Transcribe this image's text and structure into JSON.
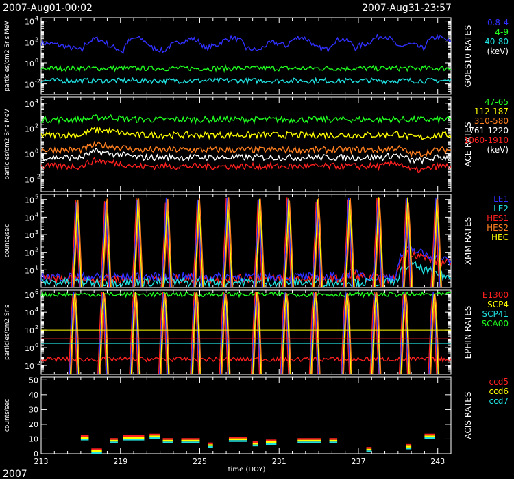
{
  "header": {
    "start": "2007-Aug01-00:02",
    "end": "2007-Aug31-23:57",
    "year": "2007"
  },
  "x_axis": {
    "label": "time (DOY)",
    "range": [
      213,
      244
    ],
    "ticks": [
      213,
      219,
      225,
      231,
      237,
      243
    ]
  },
  "chart_data": [
    {
      "type": "line",
      "title": "GOES10 RATES",
      "ylabel": "particles/cm2 Sr s MeV",
      "yscale": "log",
      "ylim": [
        0.001,
        20000
      ],
      "yticks": [
        {
          "exp": "-2",
          "v": 0.01
        },
        {
          "exp": "0",
          "v": 1
        },
        {
          "exp": "2",
          "v": 100
        },
        {
          "exp": "4",
          "v": 10000
        }
      ],
      "legend": [
        {
          "text": "0.8-4",
          "color": "#3030ff"
        },
        {
          "text": "4-9",
          "color": "#20ff20"
        },
        {
          "text": "40-80",
          "color": "#20e0e0"
        },
        {
          "text": "(keV)",
          "color": "#ffffff"
        }
      ],
      "series": [
        {
          "color": "#3030ff",
          "values": [
            80,
            60,
            30,
            15,
            200,
            40,
            10,
            250,
            30,
            12,
            80,
            200,
            20,
            60,
            250,
            25,
            15,
            90,
            40,
            300,
            30,
            20,
            200,
            25,
            80,
            400,
            30,
            60,
            20,
            300,
            80
          ]
        },
        {
          "color": "#20ff20",
          "values": [
            0.3,
            0.3,
            0.3,
            0.3,
            0.3,
            0.3,
            0.3,
            0.3,
            0.3,
            0.3,
            0.3,
            0.3,
            0.3,
            0.3,
            0.3,
            0.3,
            0.3,
            0.3,
            0.3,
            0.3,
            0.3,
            0.3,
            0.3,
            0.3,
            0.3,
            0.3,
            0.3,
            0.3,
            0.3,
            0.3,
            0.3
          ]
        },
        {
          "color": "#20e0e0",
          "values": [
            0.02,
            0.02,
            0.02,
            0.02,
            0.02,
            0.02,
            0.02,
            0.02,
            0.02,
            0.02,
            0.02,
            0.02,
            0.02,
            0.02,
            0.02,
            0.02,
            0.02,
            0.02,
            0.02,
            0.02,
            0.02,
            0.02,
            0.02,
            0.02,
            0.02,
            0.02,
            0.02,
            0.02,
            0.02,
            0.02,
            0.02
          ]
        }
      ]
    },
    {
      "type": "line",
      "title": "ACE RATES",
      "ylabel": "particles/cm2 Sr s MeV",
      "yscale": "log",
      "ylim": [
        0.001,
        30000
      ],
      "yticks": [
        {
          "exp": "-2",
          "v": 0.01
        },
        {
          "exp": "0",
          "v": 1
        },
        {
          "exp": "2",
          "v": 100
        },
        {
          "exp": "4",
          "v": 10000
        }
      ],
      "legend": [
        {
          "text": "47-65",
          "color": "#20ff20"
        },
        {
          "text": "112-187",
          "color": "#ffff00"
        },
        {
          "text": "310-580",
          "color": "#ff7f20"
        },
        {
          "text": "761-1220",
          "color": "#ffffff"
        },
        {
          "text": "1060-1910",
          "color": "#ff2020"
        },
        {
          "text": "(keV)",
          "color": "#ffffff"
        }
      ],
      "series": [
        {
          "color": "#20ff20",
          "values": [
            500,
            500,
            500,
            500,
            700,
            800,
            600,
            500,
            500,
            500,
            500,
            500,
            500,
            500,
            500,
            500,
            500,
            500,
            500,
            500,
            500,
            500,
            500,
            500,
            500,
            500,
            500,
            500,
            500,
            500,
            500
          ]
        },
        {
          "color": "#ffff00",
          "values": [
            30,
            30,
            30,
            30,
            80,
            60,
            40,
            30,
            30,
            30,
            30,
            30,
            30,
            30,
            30,
            30,
            30,
            30,
            30,
            30,
            30,
            30,
            30,
            30,
            30,
            30,
            40,
            20,
            20,
            30,
            30
          ]
        },
        {
          "color": "#ff7f20",
          "values": [
            2,
            2,
            2,
            2,
            5,
            4,
            3,
            2,
            2,
            2,
            2,
            2,
            2,
            2,
            2,
            2,
            2,
            2,
            2,
            2,
            2,
            2,
            2,
            2,
            2,
            2,
            3,
            1,
            1,
            2,
            2
          ]
        },
        {
          "color": "#ffffff",
          "values": [
            0.5,
            0.5,
            0.5,
            0.5,
            1.5,
            1,
            0.8,
            0.5,
            0.5,
            0.5,
            0.5,
            0.5,
            0.5,
            0.5,
            0.5,
            0.5,
            0.5,
            0.5,
            0.5,
            0.5,
            0.5,
            0.5,
            0.5,
            0.5,
            0.5,
            0.5,
            0.8,
            0.3,
            0.3,
            0.5,
            0.5
          ]
        },
        {
          "color": "#ff2020",
          "values": [
            0.1,
            0.1,
            0.1,
            0.1,
            0.3,
            0.2,
            0.15,
            0.1,
            0.1,
            0.1,
            0.1,
            0.1,
            0.1,
            0.1,
            0.1,
            0.1,
            0.1,
            0.1,
            0.1,
            0.1,
            0.1,
            0.1,
            0.1,
            0.1,
            0.1,
            0.1,
            0.2,
            0.05,
            0.05,
            0.1,
            0.1
          ]
        }
      ]
    },
    {
      "type": "line",
      "title": "XMM RATES",
      "ylabel": "counts/sec",
      "yscale": "log",
      "ylim": [
        1,
        200000
      ],
      "yticks": [
        {
          "exp": "1",
          "v": 10
        },
        {
          "exp": "2",
          "v": 100
        },
        {
          "exp": "3",
          "v": 1000
        },
        {
          "exp": "4",
          "v": 10000
        },
        {
          "exp": "5",
          "v": 100000
        }
      ],
      "legend": [
        {
          "text": "LE1",
          "color": "#3030ff"
        },
        {
          "text": "LE2",
          "color": "#20e0e0"
        },
        {
          "text": "HES1",
          "color": "#ff2020"
        },
        {
          "text": "HES2",
          "color": "#ff7f20"
        },
        {
          "text": "HEC",
          "color": "#ffff00"
        }
      ],
      "peaks": [
        215.6,
        217.8,
        220.2,
        222.4,
        224.8,
        227.0,
        229.4,
        231.6,
        233.8,
        236.2,
        238.4,
        240.6,
        242.8
      ],
      "series": [
        {
          "color": "#ff2020",
          "values": [
            3,
            3,
            3,
            3,
            3,
            3,
            3,
            3,
            3,
            3,
            3,
            3,
            3,
            3,
            3,
            3,
            3,
            3,
            3,
            3,
            3,
            3,
            3,
            5,
            3,
            3,
            3,
            100,
            50,
            30,
            20
          ]
        },
        {
          "color": "#3030ff",
          "values": [
            4,
            4,
            4,
            4,
            4,
            4,
            4,
            4,
            4,
            4,
            4,
            4,
            4,
            4,
            4,
            4,
            4,
            4,
            4,
            4,
            4,
            4,
            4,
            8,
            4,
            4,
            4,
            150,
            80,
            50,
            30
          ]
        },
        {
          "color": "#20e0e0",
          "values": [
            2,
            2,
            2,
            2,
            2,
            2,
            2,
            2,
            2,
            2,
            2,
            2,
            2,
            2,
            2,
            2,
            2,
            2,
            2,
            2,
            2,
            2,
            2,
            2,
            2,
            2,
            2,
            20,
            10,
            6,
            3
          ]
        }
      ]
    },
    {
      "type": "line",
      "title": "EPHIN RATES",
      "ylabel": "particles/cm2 Sr s",
      "yscale": "log",
      "ylim": [
        0.001,
        3000000
      ],
      "yticks": [
        {
          "exp": "-2",
          "v": 0.01
        },
        {
          "exp": "0",
          "v": 1
        },
        {
          "exp": "2",
          "v": 100
        },
        {
          "exp": "4",
          "v": 10000
        },
        {
          "exp": "6",
          "v": 1000000
        }
      ],
      "legend": [
        {
          "text": "E1300",
          "color": "#ff2020"
        },
        {
          "text": "SCP4",
          "color": "#ffff00"
        },
        {
          "text": "SCP41",
          "color": "#20e0e0"
        },
        {
          "text": "SCA00",
          "color": "#20ff20"
        }
      ],
      "peaks": [
        215.4,
        217.6,
        220.0,
        222.2,
        224.6,
        226.8,
        229.2,
        231.4,
        233.6,
        236.0,
        238.2,
        240.4,
        242.6
      ],
      "series": [
        {
          "color": "#ff2020",
          "values": [
            0.05,
            0.05,
            0.05,
            0.05,
            0.05,
            0.05,
            0.05,
            0.05,
            0.05,
            0.05,
            0.05,
            0.05,
            0.05,
            0.05,
            0.05,
            0.05,
            0.05,
            0.05,
            0.05,
            0.05,
            0.05,
            0.05,
            0.05,
            0.05,
            0.05,
            0.05,
            0.05,
            0.05,
            0.05,
            0.05,
            0.05
          ]
        },
        {
          "color": "#20ff20",
          "values": [
            1000000,
            1000000,
            1000000,
            1000000,
            1000000,
            1000000,
            1000000,
            1000000,
            1000000,
            1000000,
            1000000,
            1000000,
            1000000,
            1000000,
            1000000,
            1000000,
            1000000,
            1000000,
            1000000,
            1000000,
            1000000,
            1000000,
            1000000,
            1000000,
            1000000,
            1000000,
            1000000,
            1000000,
            1000000,
            1000000,
            1000000
          ]
        }
      ],
      "reference_lines": [
        {
          "color": "#ffff00",
          "value": 100
        },
        {
          "color": "#ff2020",
          "value": 10
        },
        {
          "color": "#20e0e0",
          "value": 3
        }
      ]
    },
    {
      "type": "scatter",
      "title": "ACIS RATES",
      "ylabel": "counts/sec",
      "yscale": "linear",
      "ylim": [
        0,
        52
      ],
      "yticks": [
        {
          "exp": "",
          "v": 0
        },
        {
          "exp": "",
          "v": 10
        },
        {
          "exp": "",
          "v": 20
        },
        {
          "exp": "",
          "v": 30
        },
        {
          "exp": "",
          "v": 40
        },
        {
          "exp": "",
          "v": 50
        }
      ],
      "legend": [
        {
          "text": "ccd5",
          "color": "#ff2020"
        },
        {
          "text": "ccd6",
          "color": "#ffff00"
        },
        {
          "text": "ccd7",
          "color": "#20e0e0"
        }
      ],
      "segments": [
        {
          "x0": 216.0,
          "x1": 216.6,
          "y": 12
        },
        {
          "x0": 216.8,
          "x1": 217.6,
          "y": 3
        },
        {
          "x0": 218.2,
          "x1": 218.8,
          "y": 10
        },
        {
          "x0": 219.2,
          "x1": 220.8,
          "y": 12
        },
        {
          "x0": 221.2,
          "x1": 222.0,
          "y": 13
        },
        {
          "x0": 222.2,
          "x1": 223.0,
          "y": 10
        },
        {
          "x0": 223.6,
          "x1": 225.0,
          "y": 10
        },
        {
          "x0": 225.6,
          "x1": 226.0,
          "y": 7
        },
        {
          "x0": 227.2,
          "x1": 228.6,
          "y": 11
        },
        {
          "x0": 229.0,
          "x1": 229.4,
          "y": 8
        },
        {
          "x0": 230.0,
          "x1": 230.8,
          "y": 9
        },
        {
          "x0": 232.4,
          "x1": 234.2,
          "y": 10
        },
        {
          "x0": 234.8,
          "x1": 235.4,
          "y": 10
        },
        {
          "x0": 237.6,
          "x1": 238.0,
          "y": 4
        },
        {
          "x0": 240.6,
          "x1": 241.0,
          "y": 6
        },
        {
          "x0": 242.0,
          "x1": 242.8,
          "y": 13
        }
      ]
    }
  ]
}
